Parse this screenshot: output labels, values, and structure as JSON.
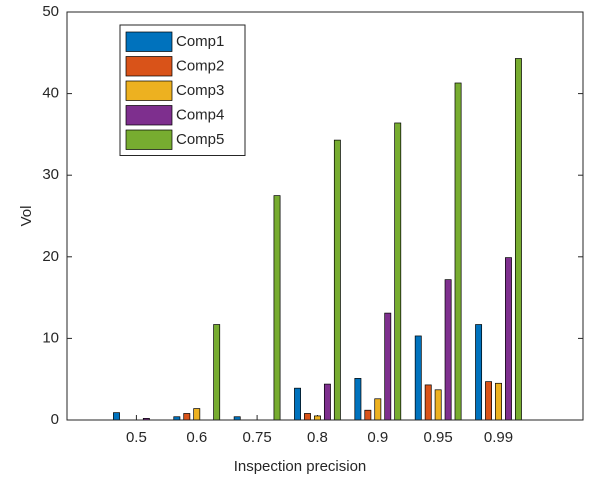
{
  "chart_data": {
    "type": "bar",
    "x_label": "Inspection precision",
    "y_label": "Vol",
    "categories": [
      "0.5",
      "0.6",
      "0.75",
      "0.8",
      "0.9",
      "0.95",
      "0.99"
    ],
    "series": [
      {
        "name": "Comp1",
        "color": "#0072BD",
        "values": [
          0.9,
          0.4,
          0.4,
          3.9,
          5.1,
          10.3,
          11.7
        ]
      },
      {
        "name": "Comp2",
        "color": "#D95319",
        "values": [
          0,
          0.8,
          0,
          0.8,
          1.2,
          4.3,
          4.7
        ]
      },
      {
        "name": "Comp3",
        "color": "#EDB120",
        "values": [
          0,
          1.4,
          0,
          0.5,
          2.6,
          3.7,
          4.5
        ]
      },
      {
        "name": "Comp4",
        "color": "#7E2F8E",
        "values": [
          0.2,
          0,
          0,
          4.4,
          13.1,
          17.2,
          19.9
        ]
      },
      {
        "name": "Comp5",
        "color": "#77AC30",
        "values": [
          0,
          11.7,
          27.5,
          34.3,
          36.4,
          41.3,
          44.3
        ]
      }
    ],
    "ylim": [
      0,
      50
    ],
    "yticks": [
      0,
      10,
      20,
      30,
      40,
      50
    ],
    "legend": "upper-left",
    "grid": false
  }
}
